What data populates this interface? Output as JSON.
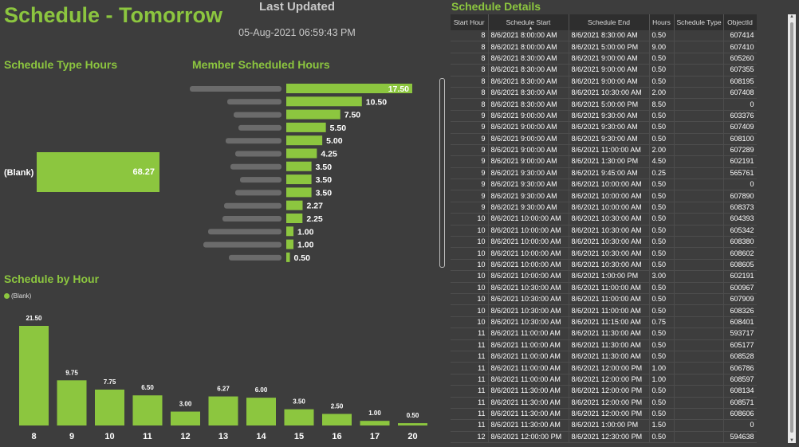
{
  "header": {
    "title": "Schedule - Tomorrow",
    "last_updated_label": "Last Updated",
    "last_updated_value": "05-Aug-2021 06:59:43 PM"
  },
  "colors": {
    "accent": "#8cc63f",
    "background": "#3d3d3d"
  },
  "chart_data": [
    {
      "type": "bar",
      "orientation": "horizontal",
      "title": "Schedule Type Hours",
      "categories": [
        "(Blank)"
      ],
      "values": [
        68.27
      ],
      "labels": [
        "68.27"
      ]
    },
    {
      "type": "bar",
      "orientation": "horizontal",
      "title": "Member Scheduled Hours",
      "categories": [
        "",
        "",
        "",
        "",
        "",
        "",
        "",
        "",
        "",
        "",
        "",
        "",
        "",
        ""
      ],
      "values": [
        17.5,
        10.5,
        7.5,
        5.5,
        5.0,
        4.25,
        3.5,
        3.5,
        3.5,
        2.27,
        2.25,
        1.0,
        1.0,
        0.5
      ],
      "labels": [
        "17.50",
        "10.50",
        "7.50",
        "5.50",
        "5.00",
        "4.25",
        "3.50",
        "3.50",
        "3.50",
        "2.27",
        "2.25",
        "1.00",
        "1.00",
        "0.50"
      ],
      "note_categories_blurred": true
    },
    {
      "type": "bar",
      "title": "Schedule by Hour",
      "legend": "(Blank)",
      "categories": [
        "8",
        "9",
        "10",
        "11",
        "12",
        "13",
        "14",
        "15",
        "16",
        "17",
        "20"
      ],
      "values": [
        21.5,
        9.75,
        7.75,
        6.5,
        3.0,
        6.27,
        6.0,
        3.5,
        2.5,
        1.0,
        0.5
      ],
      "labels": [
        "21.50",
        "9.75",
        "7.75",
        "6.50",
        "3.00",
        "6.27",
        "6.00",
        "3.50",
        "2.50",
        "1.00",
        "0.50"
      ]
    }
  ],
  "table": {
    "title": "Schedule Details",
    "columns": [
      "Start Hour",
      "Schedule Start",
      "Schedule End",
      "Hours",
      "Schedule Type",
      "ObjectId"
    ],
    "rows": [
      [
        "8",
        "8/6/2021 8:00:00 AM",
        "8/6/2021 8:30:00 AM",
        "0.50",
        "",
        "607414"
      ],
      [
        "8",
        "8/6/2021 8:00:00 AM",
        "8/6/2021 5:00:00 PM",
        "9.00",
        "",
        "607410"
      ],
      [
        "8",
        "8/6/2021 8:30:00 AM",
        "8/6/2021 9:00:00 AM",
        "0.50",
        "",
        "605260"
      ],
      [
        "8",
        "8/6/2021 8:30:00 AM",
        "8/6/2021 9:00:00 AM",
        "0.50",
        "",
        "607355"
      ],
      [
        "8",
        "8/6/2021 8:30:00 AM",
        "8/6/2021 9:00:00 AM",
        "0.50",
        "",
        "608195"
      ],
      [
        "8",
        "8/6/2021 8:30:00 AM",
        "8/6/2021 10:30:00 AM",
        "2.00",
        "",
        "607408"
      ],
      [
        "8",
        "8/6/2021 8:30:00 AM",
        "8/6/2021 5:00:00 PM",
        "8.50",
        "",
        "0"
      ],
      [
        "9",
        "8/6/2021 9:00:00 AM",
        "8/6/2021 9:30:00 AM",
        "0.50",
        "",
        "603376"
      ],
      [
        "9",
        "8/6/2021 9:00:00 AM",
        "8/6/2021 9:30:00 AM",
        "0.50",
        "",
        "607409"
      ],
      [
        "9",
        "8/6/2021 9:00:00 AM",
        "8/6/2021 9:30:00 AM",
        "0.50",
        "",
        "608100"
      ],
      [
        "9",
        "8/6/2021 9:00:00 AM",
        "8/6/2021 11:00:00 AM",
        "2.00",
        "",
        "607289"
      ],
      [
        "9",
        "8/6/2021 9:00:00 AM",
        "8/6/2021 1:30:00 PM",
        "4.50",
        "",
        "602191"
      ],
      [
        "9",
        "8/6/2021 9:30:00 AM",
        "8/6/2021 9:45:00 AM",
        "0.25",
        "",
        "565761"
      ],
      [
        "9",
        "8/6/2021 9:30:00 AM",
        "8/6/2021 10:00:00 AM",
        "0.50",
        "",
        "0"
      ],
      [
        "9",
        "8/6/2021 9:30:00 AM",
        "8/6/2021 10:00:00 AM",
        "0.50",
        "",
        "607890"
      ],
      [
        "9",
        "8/6/2021 9:30:00 AM",
        "8/6/2021 10:00:00 AM",
        "0.50",
        "",
        "608373"
      ],
      [
        "10",
        "8/6/2021 10:00:00 AM",
        "8/6/2021 10:30:00 AM",
        "0.50",
        "",
        "604393"
      ],
      [
        "10",
        "8/6/2021 10:00:00 AM",
        "8/6/2021 10:30:00 AM",
        "0.50",
        "",
        "605342"
      ],
      [
        "10",
        "8/6/2021 10:00:00 AM",
        "8/6/2021 10:30:00 AM",
        "0.50",
        "",
        "608380"
      ],
      [
        "10",
        "8/6/2021 10:00:00 AM",
        "8/6/2021 10:30:00 AM",
        "0.50",
        "",
        "608602"
      ],
      [
        "10",
        "8/6/2021 10:00:00 AM",
        "8/6/2021 10:30:00 AM",
        "0.50",
        "",
        "608605"
      ],
      [
        "10",
        "8/6/2021 10:00:00 AM",
        "8/6/2021 1:00:00 PM",
        "3.00",
        "",
        "602191"
      ],
      [
        "10",
        "8/6/2021 10:30:00 AM",
        "8/6/2021 11:00:00 AM",
        "0.50",
        "",
        "600967"
      ],
      [
        "10",
        "8/6/2021 10:30:00 AM",
        "8/6/2021 11:00:00 AM",
        "0.50",
        "",
        "607909"
      ],
      [
        "10",
        "8/6/2021 10:30:00 AM",
        "8/6/2021 11:00:00 AM",
        "0.50",
        "",
        "608326"
      ],
      [
        "10",
        "8/6/2021 10:30:00 AM",
        "8/6/2021 11:15:00 AM",
        "0.75",
        "",
        "608401"
      ],
      [
        "11",
        "8/6/2021 11:00:00 AM",
        "8/6/2021 11:30:00 AM",
        "0.50",
        "",
        "593717"
      ],
      [
        "11",
        "8/6/2021 11:00:00 AM",
        "8/6/2021 11:30:00 AM",
        "0.50",
        "",
        "605177"
      ],
      [
        "11",
        "8/6/2021 11:00:00 AM",
        "8/6/2021 11:30:00 AM",
        "0.50",
        "",
        "608528"
      ],
      [
        "11",
        "8/6/2021 11:00:00 AM",
        "8/6/2021 12:00:00 PM",
        "1.00",
        "",
        "606786"
      ],
      [
        "11",
        "8/6/2021 11:00:00 AM",
        "8/6/2021 12:00:00 PM",
        "1.00",
        "",
        "608597"
      ],
      [
        "11",
        "8/6/2021 11:30:00 AM",
        "8/6/2021 12:00:00 PM",
        "0.50",
        "",
        "608134"
      ],
      [
        "11",
        "8/6/2021 11:30:00 AM",
        "8/6/2021 12:00:00 PM",
        "0.50",
        "",
        "608571"
      ],
      [
        "11",
        "8/6/2021 11:30:00 AM",
        "8/6/2021 12:00:00 PM",
        "0.50",
        "",
        "608606"
      ],
      [
        "11",
        "8/6/2021 11:30:00 AM",
        "8/6/2021 1:00:00 PM",
        "1.50",
        "",
        "0"
      ],
      [
        "12",
        "8/6/2021 12:00:00 PM",
        "8/6/2021 12:30:00 PM",
        "0.50",
        "",
        "594638"
      ]
    ]
  }
}
